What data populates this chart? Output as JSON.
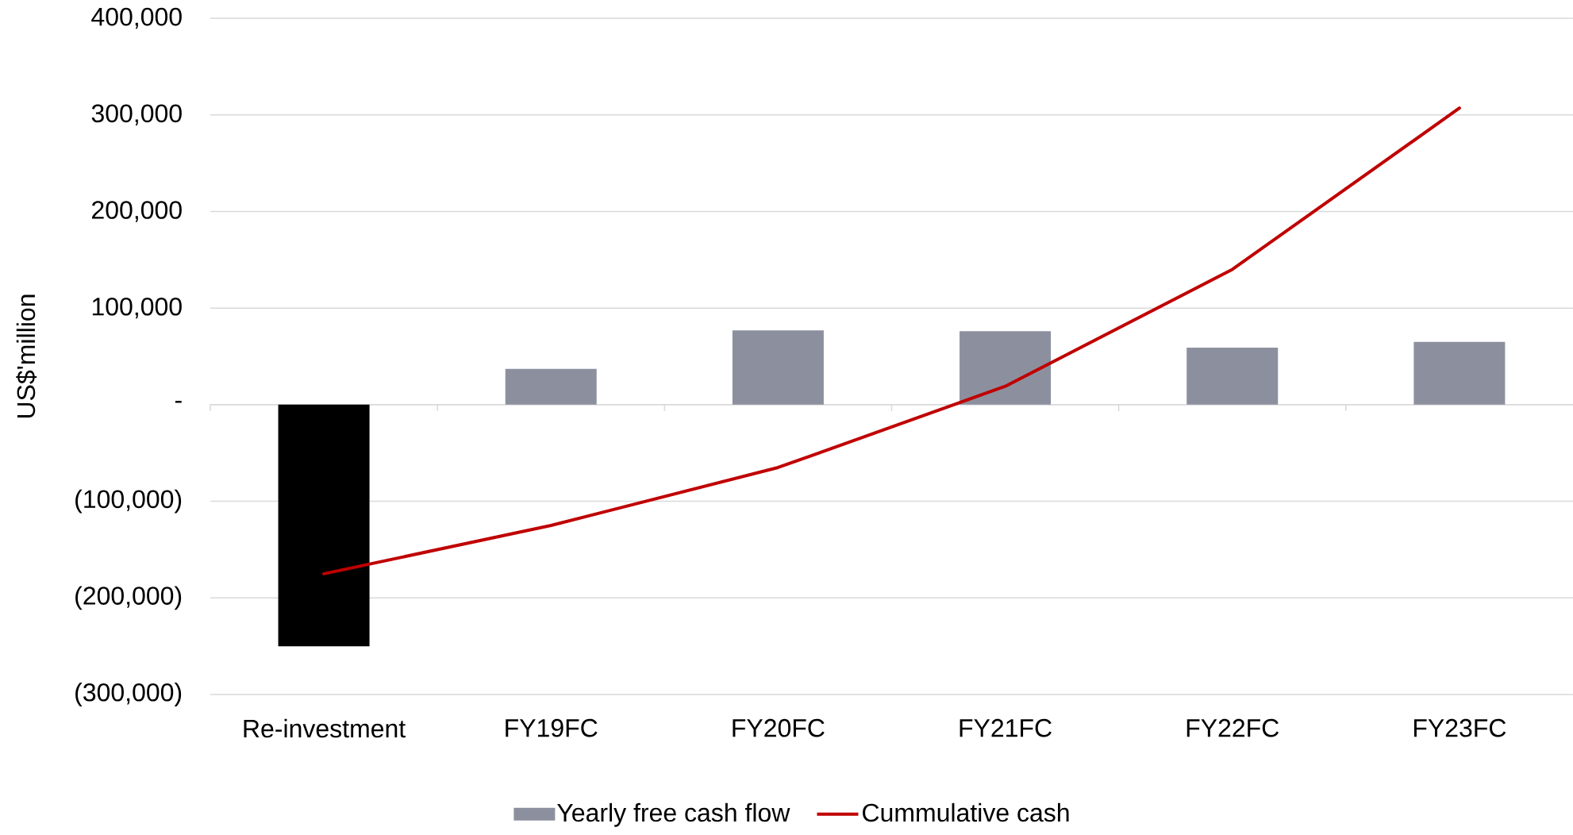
{
  "chart_data": {
    "type": "bar",
    "ylabel": "US$'million",
    "categories": [
      "Re-investment",
      "FY19FC",
      "FY20FC",
      "FY21FC",
      "FY22FC",
      "FY23FC"
    ],
    "series": [
      {
        "name": "Yearly free cash flow",
        "color": "#8c909e",
        "colors": [
          "#000000",
          "#8c909e",
          "#8c909e",
          "#8c909e",
          "#8c909e",
          "#8c909e"
        ],
        "values": [
          -250000,
          37000,
          77000,
          76000,
          59000,
          65000
        ]
      },
      {
        "name": "Cummulative cash",
        "type": "line",
        "color": "#c00000",
        "values": [
          -175000,
          -125000,
          -65000,
          19000,
          140000,
          307000
        ]
      }
    ],
    "ylim": [
      -300000,
      400000
    ],
    "yticks": [
      {
        "value": -300000,
        "label": "(300,000)"
      },
      {
        "value": -200000,
        "label": "(200,000)"
      },
      {
        "value": -100000,
        "label": "(100,000)"
      },
      {
        "value": 0,
        "label": "-"
      },
      {
        "value": 100000,
        "label": "100,000"
      },
      {
        "value": 200000,
        "label": "200,000"
      },
      {
        "value": 300000,
        "label": "300,000"
      },
      {
        "value": 400000,
        "label": "400,000"
      }
    ],
    "grid": "y",
    "legend": "bottom"
  }
}
